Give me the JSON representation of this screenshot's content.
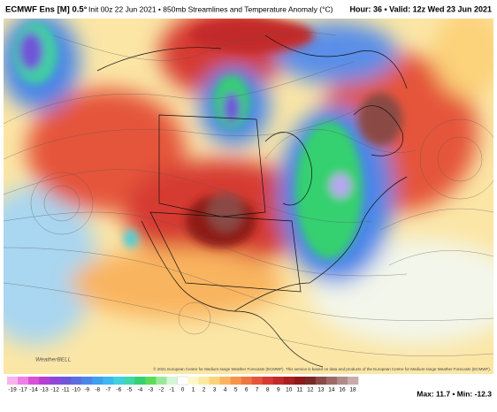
{
  "header": {
    "model": "ECMWF Ens [M] 0.5°",
    "description": "Init 00z 22 Jun 2021 • 850mb Streamlines and Temperature Anomaly (°C)",
    "valid": "Hour: 36 • Valid: 12z Wed 23 Jun 2021"
  },
  "map": {
    "logo": "WeatherBELL",
    "credit": "© 2021 European Centre for Medium-range Weather Forecasts (ECMWF). This service is based on data and products of the European Centre for Medium-range Weather Forecasts (ECMWF)."
  },
  "colorbar": {
    "ticks": [
      -19,
      -17,
      -14,
      -13,
      -12,
      -11,
      -10,
      -9,
      -8,
      -7,
      -6,
      -5,
      -4,
      -3,
      -2,
      -1,
      0,
      1,
      2,
      3,
      4,
      5,
      6,
      7,
      8,
      9,
      10,
      11,
      12,
      13,
      14,
      16,
      18
    ],
    "colors": [
      "#f7b3ef",
      "#ee7fe6",
      "#d94fd6",
      "#b53fcf",
      "#8f46d8",
      "#7055d8",
      "#5a6ee0",
      "#4a86e8",
      "#3f9ff0",
      "#3db8f0",
      "#40d0e0",
      "#3fd8a8",
      "#35d070",
      "#5bdc58",
      "#9be89a",
      "#d6f5d6",
      "#ffffff",
      "#fff7c8",
      "#fde9a0",
      "#fcd27a",
      "#f9b45e",
      "#f5944a",
      "#ef7540",
      "#e5553a",
      "#d63a33",
      "#c22a2a",
      "#a8201f",
      "#8e1a17",
      "#7a2a24",
      "#8a4a45",
      "#9d6a66",
      "#b08a86",
      "#c8acaa"
    ]
  },
  "stats": "Max: 11.7 • Min: -12.3"
}
